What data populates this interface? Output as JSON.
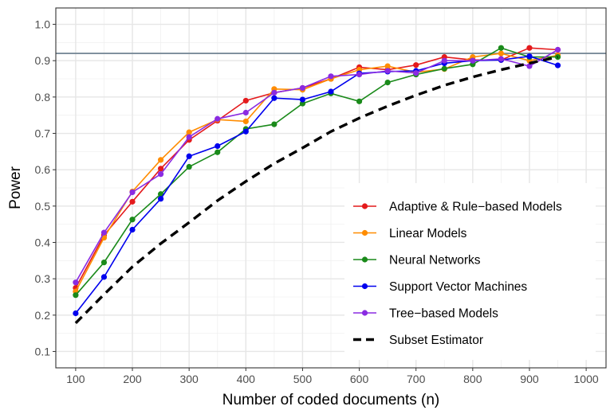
{
  "chart_data": {
    "type": "line",
    "xlabel": "Number of coded documents (n)",
    "ylabel": "Power",
    "xlim": [
      65,
      1035
    ],
    "ylim": [
      0.055,
      1.045
    ],
    "x_ticks": [
      100,
      200,
      300,
      400,
      500,
      600,
      700,
      800,
      900,
      1000
    ],
    "y_ticks": [
      0.1,
      0.2,
      0.3,
      0.4,
      0.5,
      0.6,
      0.7,
      0.8,
      0.9,
      1.0
    ],
    "x_tick_labels": [
      "100",
      "200",
      "300",
      "400",
      "500",
      "600",
      "700",
      "800",
      "900",
      "1000"
    ],
    "y_tick_labels": [
      "0.1",
      "0.2",
      "0.3",
      "0.4",
      "0.5",
      "0.6",
      "0.7",
      "0.8",
      "0.9",
      "1.0"
    ],
    "reference_line": {
      "y": 0.92,
      "color": "#7a8b99"
    },
    "grid": true,
    "legend_position": "right",
    "x": [
      100,
      150,
      200,
      250,
      300,
      350,
      400,
      450,
      500,
      550,
      600,
      650,
      700,
      750,
      800,
      850,
      900,
      950
    ],
    "series": [
      {
        "name": "Adaptive & Rule−based Models",
        "color": "#e41a1c",
        "values": [
          0.275,
          0.42,
          0.512,
          0.603,
          0.682,
          0.735,
          0.79,
          0.812,
          0.825,
          0.85,
          0.882,
          0.875,
          0.888,
          0.91,
          0.902,
          0.902,
          0.935,
          0.93
        ]
      },
      {
        "name": "Linear Models",
        "color": "#ff8c00",
        "values": [
          0.265,
          0.413,
          0.54,
          0.627,
          0.703,
          0.738,
          0.733,
          0.822,
          0.82,
          0.85,
          0.875,
          0.885,
          0.868,
          0.877,
          0.91,
          0.92,
          0.9,
          0.915
        ]
      },
      {
        "name": "Neural Networks",
        "color": "#1a8a1a",
        "values": [
          0.255,
          0.345,
          0.463,
          0.533,
          0.608,
          0.648,
          0.712,
          0.725,
          0.782,
          0.81,
          0.788,
          0.84,
          0.862,
          0.878,
          0.89,
          0.935,
          0.91,
          0.91
        ]
      },
      {
        "name": "Support Vector Machines",
        "color": "#0000ee",
        "values": [
          0.205,
          0.305,
          0.435,
          0.52,
          0.637,
          0.665,
          0.705,
          0.797,
          0.793,
          0.815,
          0.865,
          0.87,
          0.872,
          0.893,
          0.9,
          0.902,
          0.912,
          0.887
        ]
      },
      {
        "name": "Tree−based Models",
        "color": "#8a2be2",
        "values": [
          0.29,
          0.427,
          0.538,
          0.588,
          0.69,
          0.74,
          0.757,
          0.812,
          0.825,
          0.857,
          0.862,
          0.872,
          0.866,
          0.9,
          0.9,
          0.905,
          0.885,
          0.93
        ]
      }
    ],
    "estimator": {
      "name": "Subset Estimator",
      "style": "dashed",
      "color": "#000000",
      "x": [
        100,
        150,
        200,
        250,
        300,
        350,
        400,
        450,
        500,
        550,
        600,
        650,
        700,
        750,
        800,
        850,
        900,
        950
      ],
      "values": [
        0.178,
        0.257,
        0.333,
        0.397,
        0.455,
        0.515,
        0.568,
        0.617,
        0.66,
        0.705,
        0.742,
        0.775,
        0.805,
        0.832,
        0.855,
        0.875,
        0.893,
        0.91
      ]
    }
  }
}
